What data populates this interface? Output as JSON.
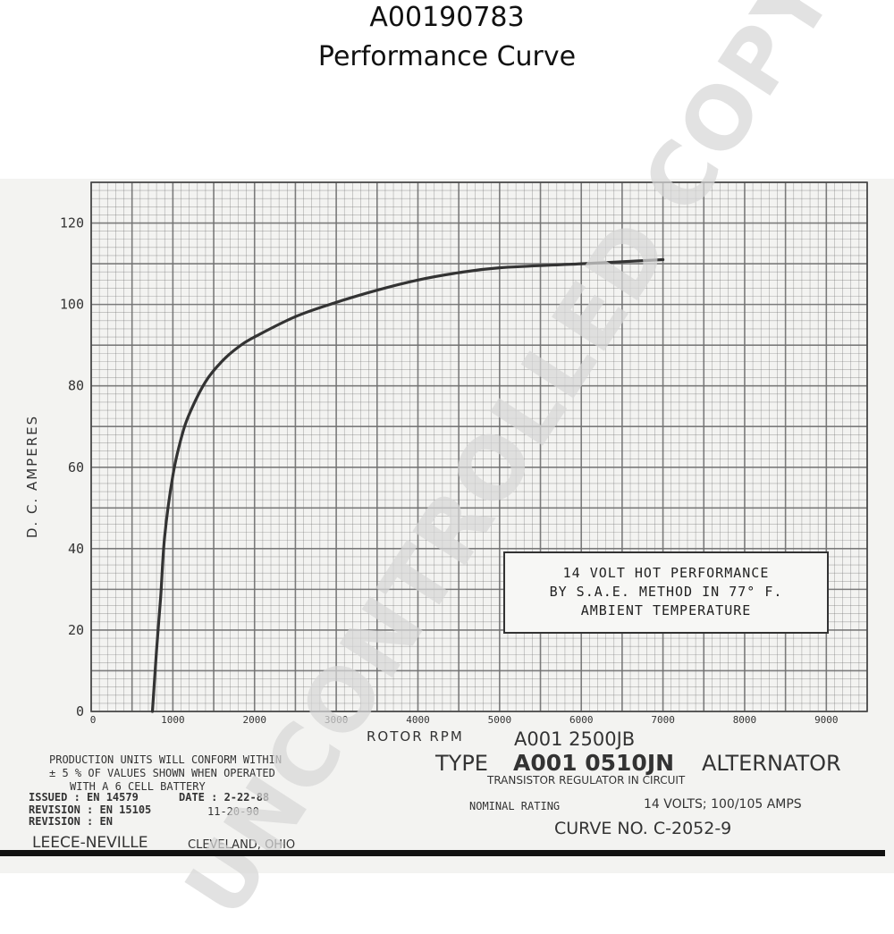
{
  "page": {
    "part_number": "A00190783",
    "subtitle": "Performance Curve"
  },
  "chart_data": {
    "type": "line",
    "title": "",
    "xlabel": "ROTOR RPM",
    "ylabel": "D. C. AMPERES",
    "xlim": [
      0,
      9500
    ],
    "ylim": [
      0,
      130
    ],
    "x_ticks": [
      0,
      1000,
      2000,
      3000,
      4000,
      5000,
      6000,
      7000,
      8000,
      9000
    ],
    "x_tick_labels": [
      "0",
      "1000",
      "2000",
      "3000",
      "4000",
      "5000",
      "6000",
      "7000",
      "8000",
      "9000"
    ],
    "y_ticks": [
      0,
      20,
      40,
      60,
      80,
      100,
      120
    ],
    "y_tick_labels": [
      "0",
      "20",
      "40",
      "60",
      "80",
      "100",
      "120"
    ],
    "grid": true,
    "series": [
      {
        "x": [
          750,
          800,
          850,
          900,
          1000,
          1100,
          1200,
          1400,
          1600,
          1800,
          2000,
          2500,
          3000,
          3500,
          4000,
          4500,
          5000,
          6000,
          7000
        ],
        "values": [
          0,
          15,
          28,
          43,
          58,
          67,
          73,
          81,
          86,
          89.5,
          92,
          97,
          100.5,
          103.5,
          106,
          107.8,
          109,
          110,
          111
        ]
      }
    ]
  },
  "annotation": {
    "line1": "14 VOLT HOT PERFORMANCE",
    "line2": "BY S.A.E. METHOD IN 77° F.",
    "line3": "AMBIENT TEMPERATURE"
  },
  "footer": {
    "production_line1": "PRODUCTION UNITS WILL CONFORM WITHIN",
    "production_line2": "± 5 % OF VALUES SHOWN WHEN OPERATED",
    "production_line3": "WITH A 6 CELL BATTERY",
    "issued": "ISSUED : EN 14579",
    "date": "DATE : 2-22-88",
    "revision1": "REVISION : EN 15105",
    "revision1_date": "11-20-90",
    "revision2": "REVISION : EN",
    "company": "LEECE-NEVILLE",
    "city": "CLEVELAND, OHIO",
    "model_top": "A001 2500JB",
    "type_prefix": "TYPE",
    "type_model": "A001 0510JN",
    "type_suffix": "ALTERNATOR",
    "regulator": "TRANSISTOR REGULATOR IN CIRCUIT",
    "nominal_label": "NOMINAL RATING",
    "nominal_value": "14 VOLTS; 100/105 AMPS",
    "curve_no": "CURVE NO. C-2052-9"
  },
  "watermark": {
    "text": "UNCONTROLLED COPY"
  },
  "colors": {
    "curve": "#333333",
    "grid": "#6f6f6f",
    "paper": "#f3f3f1",
    "watermark": "#d7d7d7"
  }
}
